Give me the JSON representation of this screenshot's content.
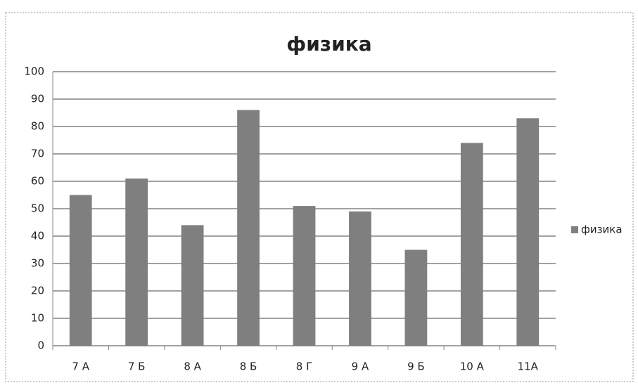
{
  "chart_data": {
    "type": "bar",
    "title": "физика",
    "categories": [
      "7 А",
      "7 Б",
      "8 А",
      "8 Б",
      "8 Г",
      "9 А",
      "9 Б",
      "10 А",
      "11А"
    ],
    "series": [
      {
        "name": "физика",
        "color": "#7f7f7f",
        "values": [
          55,
          61,
          44,
          86,
          51,
          49,
          35,
          74,
          83
        ]
      }
    ],
    "ylim": [
      0,
      100
    ],
    "yticks": [
      0,
      10,
      20,
      30,
      40,
      50,
      60,
      70,
      80,
      90,
      100
    ],
    "grid": true,
    "legend": "right"
  }
}
